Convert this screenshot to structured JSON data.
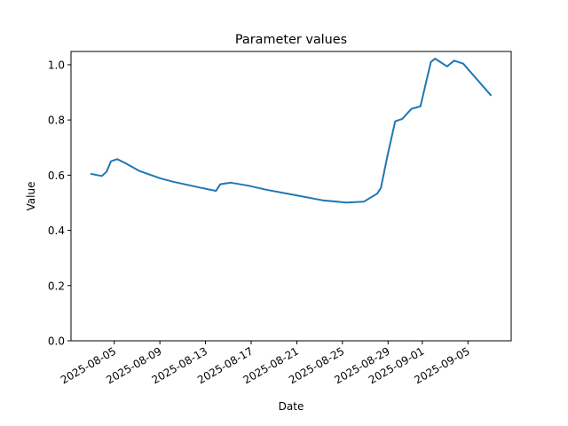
{
  "chart_data": {
    "type": "line",
    "title": "Parameter values",
    "xlabel": "Date",
    "ylabel": "Value",
    "xlim": [
      "2025-08-01T05:00",
      "2025-09-08T19:00"
    ],
    "ylim": [
      0,
      1.048
    ],
    "grid": false,
    "line_color": "#1f77b4",
    "x_ticks": [
      "2025-08-05",
      "2025-08-09",
      "2025-08-13",
      "2025-08-17",
      "2025-08-21",
      "2025-08-25",
      "2025-08-29",
      "2025-09-01",
      "2025-09-05"
    ],
    "y_ticks": [
      0.0,
      0.2,
      0.4,
      0.6,
      0.8,
      1.0
    ],
    "y_tick_labels": [
      "0.0",
      "0.2",
      "0.4",
      "0.6",
      "0.8",
      "1.0"
    ],
    "series": [
      {
        "x": [
          "2025-08-02T22:00",
          "2025-08-03T22:00",
          "2025-08-04T08:00",
          "2025-08-04T17:00",
          "2025-08-05T06:00",
          "2025-08-06T00:00",
          "2025-08-07T04:00",
          "2025-08-09T00:00",
          "2025-08-10T04:00",
          "2025-08-12T15:00",
          "2025-08-13T22:00",
          "2025-08-14T07:00",
          "2025-08-15T05:00",
          "2025-08-16T18:00",
          "2025-08-18T08:00",
          "2025-08-20T16:00",
          "2025-08-23T06:00",
          "2025-08-25T08:00",
          "2025-08-26T21:00",
          "2025-08-28T01:00",
          "2025-08-28T09:00",
          "2025-08-28T23:00",
          "2025-08-29T15:00",
          "2025-08-30T06:00",
          "2025-08-31T01:00",
          "2025-08-31T20:00",
          "2025-09-01T18:00",
          "2025-09-02T03:00",
          "2025-09-03T04:00",
          "2025-09-03T19:00",
          "2025-09-04T14:00",
          "2025-09-07T01:00"
        ],
        "y": [
          0.605,
          0.597,
          0.613,
          0.65,
          0.658,
          0.643,
          0.616,
          0.589,
          0.576,
          0.554,
          0.543,
          0.567,
          0.573,
          0.562,
          0.547,
          0.529,
          0.509,
          0.501,
          0.504,
          0.533,
          0.554,
          0.672,
          0.795,
          0.804,
          0.84,
          0.849,
          1.01,
          1.022,
          0.994,
          1.015,
          1.004,
          0.888
        ]
      }
    ]
  }
}
